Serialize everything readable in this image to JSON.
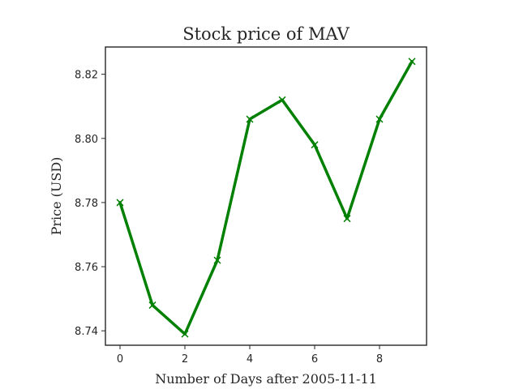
{
  "chart_data": {
    "type": "line",
    "title": "Stock price of MAV",
    "xlabel": "Number of Days after 2005-11-11",
    "ylabel": "Price (USD)",
    "xlim": [
      -0.45,
      9.45
    ],
    "ylim": [
      8.7355,
      8.8285
    ],
    "xticks": [
      0,
      2,
      4,
      6,
      8
    ],
    "yticks": [
      8.74,
      8.76,
      8.78,
      8.8,
      8.82
    ],
    "ytick_labels": [
      "8.74",
      "8.76",
      "8.78",
      "8.80",
      "8.82"
    ],
    "grid": false,
    "series": [
      {
        "color": "#008000",
        "marker": "x",
        "x": [
          0,
          1,
          2,
          3,
          4,
          5,
          6,
          7,
          8,
          9
        ],
        "y": [
          8.78,
          8.748,
          8.739,
          8.762,
          8.806,
          8.812,
          8.798,
          8.775,
          8.806,
          8.824
        ]
      }
    ]
  }
}
